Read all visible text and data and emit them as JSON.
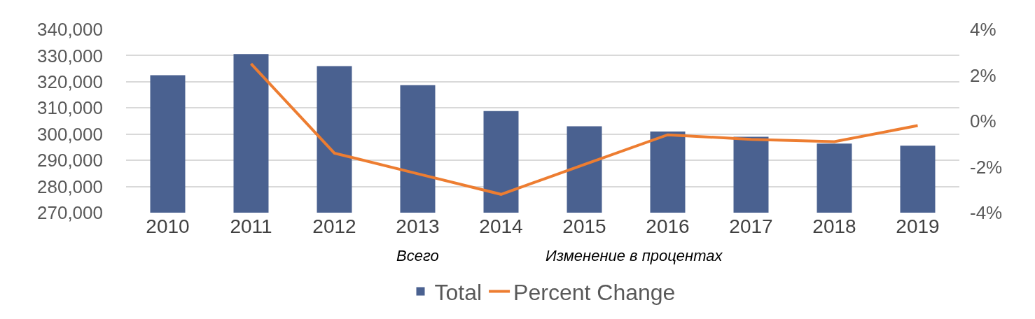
{
  "chart_data": {
    "type": "bar",
    "categories": [
      "2010",
      "2011",
      "2012",
      "2013",
      "2014",
      "2015",
      "2016",
      "2017",
      "2018",
      "2019"
    ],
    "series": [
      {
        "name": "Total",
        "color": "#4a6190",
        "values": [
          322500,
          330600,
          326000,
          318700,
          308800,
          303000,
          301000,
          299000,
          296400,
          295600
        ]
      },
      {
        "name": "Percent Change",
        "type": "line",
        "axis": "y2",
        "color": "#ed7d31",
        "values": [
          null,
          2.5,
          -1.4,
          -2.3,
          -3.2,
          -1.9,
          -0.6,
          -0.8,
          -0.9,
          -0.2
        ]
      }
    ],
    "ylim": [
      270000,
      340000
    ],
    "yticks": [
      {
        "value": 270000,
        "label": "270,000"
      },
      {
        "value": 280000,
        "label": "280,000"
      },
      {
        "value": 290000,
        "label": "290,000"
      },
      {
        "value": 300000,
        "label": "300,000"
      },
      {
        "value": 310000,
        "label": "310,000"
      },
      {
        "value": 320000,
        "label": "320,000"
      },
      {
        "value": 330000,
        "label": "330,000"
      },
      {
        "value": 340000,
        "label": "340,000"
      }
    ],
    "y2lim": [
      -4,
      4
    ],
    "y2ticks": [
      {
        "value": -4,
        "label": "-4%"
      },
      {
        "value": -2,
        "label": "-2%"
      },
      {
        "value": 0,
        "label": "0%"
      },
      {
        "value": 2,
        "label": "2%"
      },
      {
        "value": 4,
        "label": "4%"
      }
    ],
    "annotations": [
      "Всего",
      "Изменение в процентах"
    ],
    "grid": "y",
    "legend": "bottom",
    "marker": "none",
    "line_style": "solid"
  }
}
